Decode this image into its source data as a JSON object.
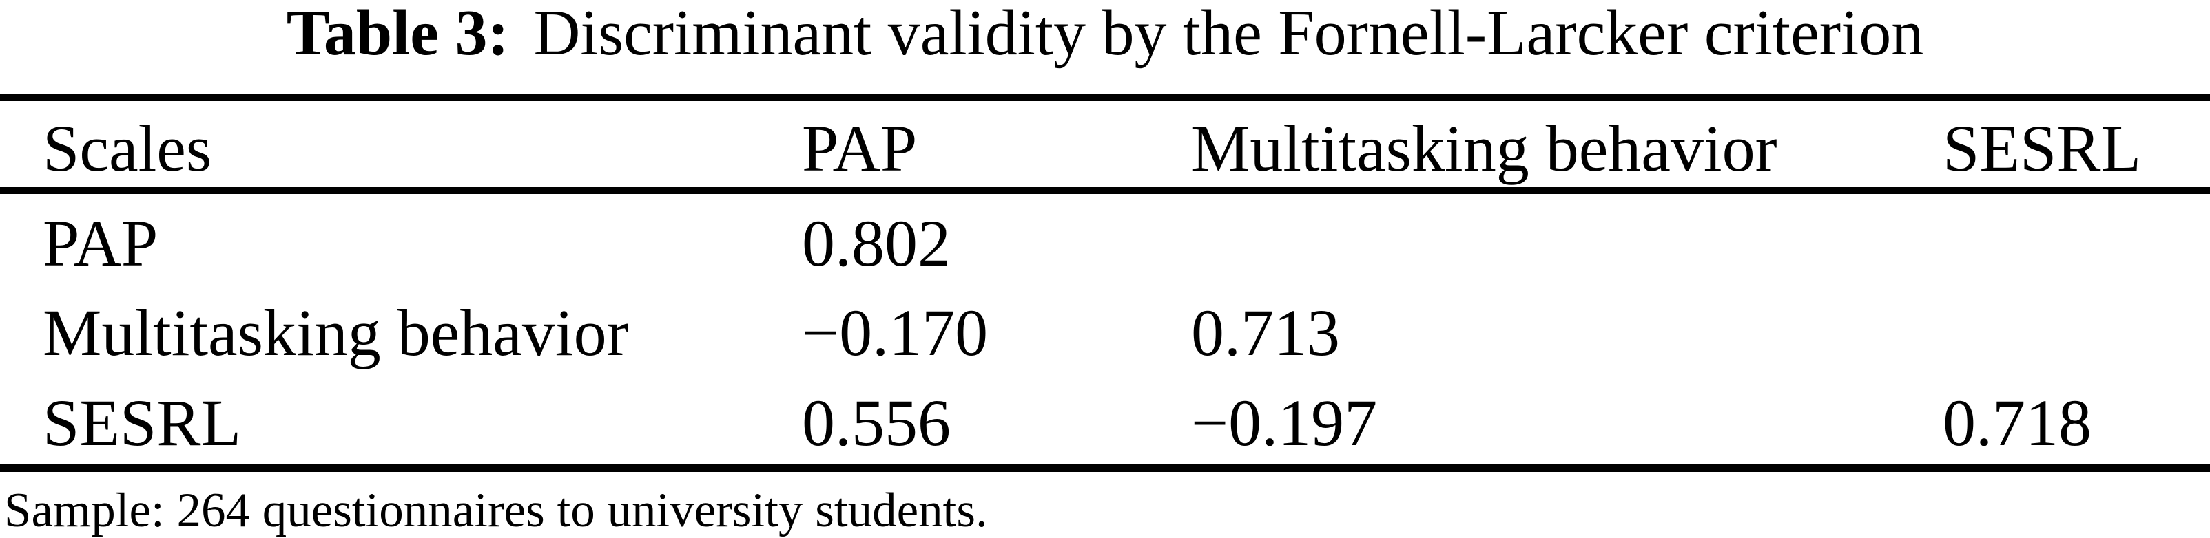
{
  "caption": {
    "label": "Table 3:",
    "text": "Discriminant validity by the Fornell-Larcker criterion"
  },
  "table": {
    "columns": [
      "Scales",
      "PAP",
      "Multitasking behavior",
      "SESRL"
    ],
    "rows": [
      [
        "PAP",
        "0.802",
        "",
        ""
      ],
      [
        "Multitasking behavior",
        "−0.170",
        "0.713",
        ""
      ],
      [
        "SESRL",
        "0.556",
        "−0.197",
        "0.718"
      ]
    ]
  },
  "footnote": "Sample: 264 questionnaires to university students.",
  "colors": {
    "background": "#ffffff",
    "text": "#000000",
    "rule": "#000000"
  }
}
